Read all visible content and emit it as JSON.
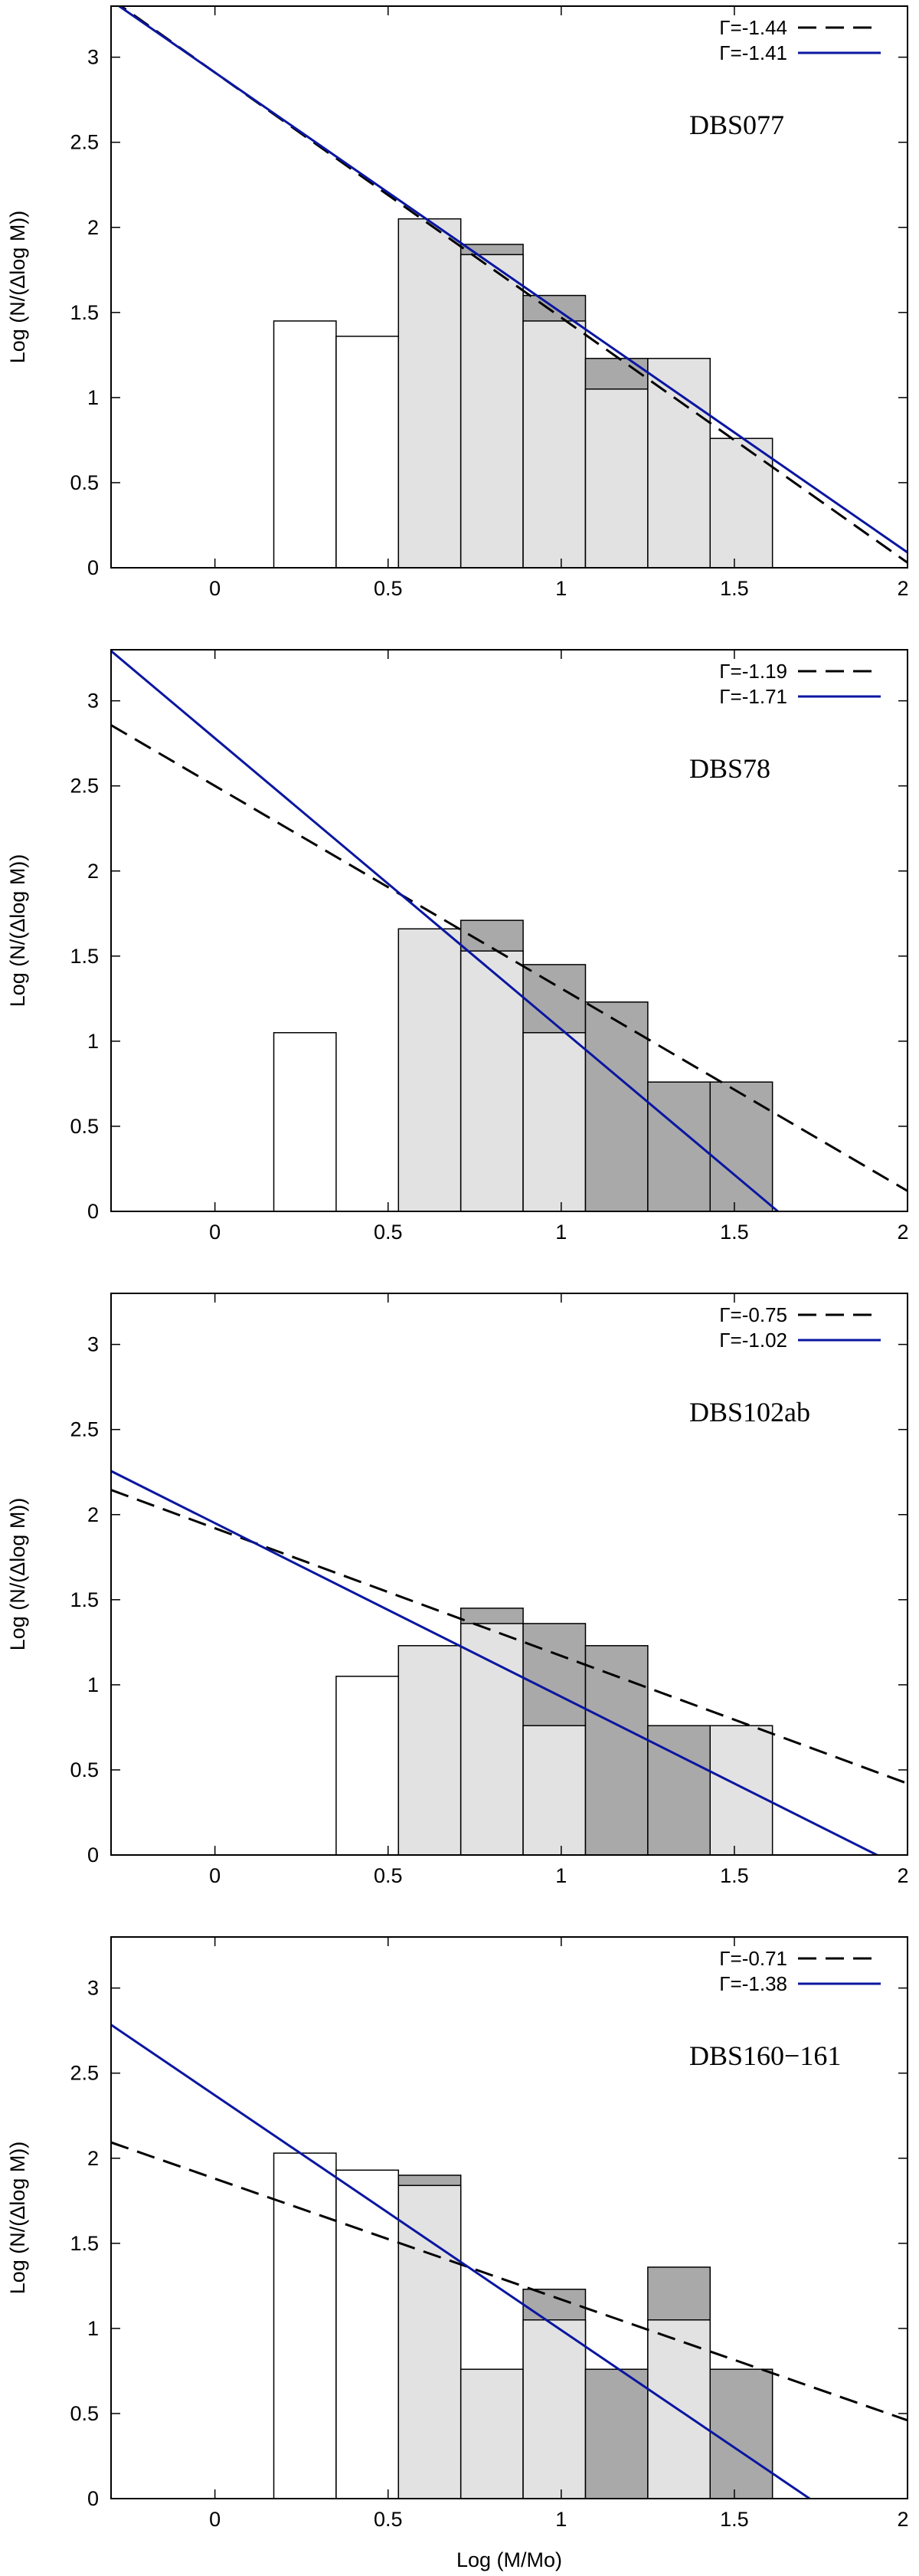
{
  "colors": {
    "white_bar": "#ffffff",
    "light_bar": "#e2e2e2",
    "dark_bar": "#a9a9a9",
    "dashed_line": "#000000",
    "blue_line": "#0a16a0"
  },
  "shared_axes": {
    "xlabel": "Log (M/Mo)",
    "ylabel": "Log (N/(Δlog M))",
    "xlim": [
      -0.3,
      2.0
    ],
    "ylim": [
      0,
      3.3
    ],
    "xticks": [
      0,
      0.5,
      1,
      1.5,
      2
    ],
    "xtick_labels": [
      "0",
      "0.5",
      "1",
      "1.5",
      "2"
    ],
    "yticks": [
      0,
      0.5,
      1,
      1.5,
      2,
      2.5,
      3
    ],
    "ytick_labels": [
      "0",
      "0.5",
      "1",
      "1.5",
      "2",
      "2.5",
      "3"
    ],
    "bin_edges": [
      0.17,
      0.35,
      0.53,
      0.71,
      0.89,
      1.07,
      1.25,
      1.43,
      1.61
    ]
  },
  "chart_data": [
    {
      "type": "bar",
      "panel_label": "DBS077",
      "series": [
        {
          "name": "Γ=-1.44",
          "style": "dashed",
          "slope": -1.44,
          "y_at_x0": 2.91
        },
        {
          "name": "Γ=-1.41",
          "style": "solid",
          "slope": -1.41,
          "y_at_x0": 2.91
        }
      ],
      "bars": [
        {
          "tone": "white",
          "total": 1.45,
          "light": 1.45
        },
        {
          "tone": "white",
          "total": 1.36,
          "light": 1.36
        },
        {
          "tone": "light",
          "total": 2.05,
          "light": 2.05
        },
        {
          "tone": "light",
          "total": 1.9,
          "light": 1.84
        },
        {
          "tone": "light",
          "total": 1.6,
          "light": 1.45
        },
        {
          "tone": "light",
          "total": 1.23,
          "light": 1.05
        },
        {
          "tone": "light",
          "total": 1.23,
          "light": 1.23
        },
        {
          "tone": "light",
          "total": 0.76,
          "light": 0.76
        }
      ]
    },
    {
      "type": "bar",
      "panel_label": "DBS78",
      "series": [
        {
          "name": "Γ=-1.19",
          "style": "dashed",
          "slope": -1.19,
          "y_at_x0": 2.5
        },
        {
          "name": "Γ=-1.71",
          "style": "solid",
          "slope": -1.71,
          "y_at_x0": 2.78
        }
      ],
      "bars": [
        {
          "tone": "white",
          "total": 1.05,
          "light": 1.05
        },
        {
          "tone": "none",
          "total": 0,
          "light": 0
        },
        {
          "tone": "light",
          "total": 1.66,
          "light": 1.66
        },
        {
          "tone": "light",
          "total": 1.71,
          "light": 1.53
        },
        {
          "tone": "light",
          "total": 1.45,
          "light": 1.05
        },
        {
          "tone": "dark",
          "total": 1.23,
          "light": 0
        },
        {
          "tone": "dark",
          "total": 0.76,
          "light": 0
        },
        {
          "tone": "dark",
          "total": 0.76,
          "light": 0
        }
      ]
    },
    {
      "type": "bar",
      "panel_label": "DBS102ab",
      "series": [
        {
          "name": "Γ=-0.75",
          "style": "dashed",
          "slope": -0.75,
          "y_at_x0": 1.92
        },
        {
          "name": "Γ=-1.02",
          "style": "solid",
          "slope": -1.02,
          "y_at_x0": 1.95
        }
      ],
      "bars": [
        {
          "tone": "none",
          "total": 0,
          "light": 0
        },
        {
          "tone": "white",
          "total": 1.05,
          "light": 1.05
        },
        {
          "tone": "light",
          "total": 1.23,
          "light": 1.23
        },
        {
          "tone": "light",
          "total": 1.45,
          "light": 1.36
        },
        {
          "tone": "light",
          "total": 1.36,
          "light": 0.76
        },
        {
          "tone": "dark",
          "total": 1.23,
          "light": 0
        },
        {
          "tone": "dark",
          "total": 0.76,
          "light": 0
        },
        {
          "tone": "light",
          "total": 0.76,
          "light": 0.76
        }
      ]
    },
    {
      "type": "bar",
      "panel_label": "DBS160−161",
      "series": [
        {
          "name": "Γ=-0.71",
          "style": "dashed",
          "slope": -0.71,
          "y_at_x0": 1.88
        },
        {
          "name": "Γ=-1.38",
          "style": "solid",
          "slope": -1.38,
          "y_at_x0": 2.37
        }
      ],
      "bars": [
        {
          "tone": "white",
          "total": 2.03,
          "light": 2.03
        },
        {
          "tone": "white",
          "total": 1.93,
          "light": 1.93
        },
        {
          "tone": "light",
          "total": 1.9,
          "light": 1.84
        },
        {
          "tone": "light",
          "total": 0.76,
          "light": 0.76
        },
        {
          "tone": "light",
          "total": 1.23,
          "light": 1.05
        },
        {
          "tone": "dark",
          "total": 0.76,
          "light": 0
        },
        {
          "tone": "light",
          "total": 1.36,
          "light": 1.05
        },
        {
          "tone": "dark",
          "total": 0.76,
          "light": 0
        }
      ]
    }
  ]
}
